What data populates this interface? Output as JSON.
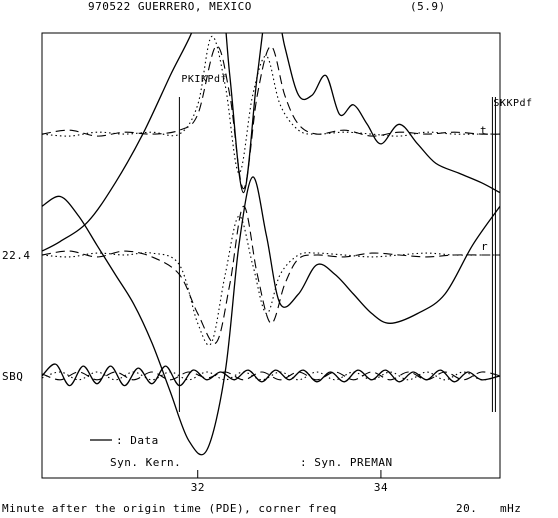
{
  "chart_data": {
    "type": "line",
    "title": "970522 GUERRERO, MEXICO",
    "magnitude": "(5.9)",
    "xlabel": "Minute after the origin time (PDE), corner freq",
    "corner_freq": "20.",
    "corner_freq_unit": "mHz",
    "xlim": [
      30.3,
      35.3
    ],
    "x_ticks": [
      {
        "value": 32,
        "label": "32"
      },
      {
        "value": 34,
        "label": "34"
      }
    ],
    "phase_markers": [
      {
        "label": "PKIKPdf",
        "x": 31.8
      },
      {
        "label": "SKKPdf",
        "x": 35.25
      }
    ],
    "trace_labels": {
      "distance": "22.4",
      "station": "SBQ",
      "transverse": "t",
      "radial": "r"
    },
    "legend": [
      {
        "label": ": Data",
        "style": "solid"
      },
      {
        "label": "Syn. Kern.",
        "style": "dotted"
      },
      {
        "label": ": Syn. PREMAN",
        "style": "dashed"
      }
    ],
    "traces": [
      {
        "name": "t",
        "baseline": 0.62,
        "series": [
          {
            "style": "solid",
            "points": [
              [
                30.3,
                -0.6
              ],
              [
                30.5,
                -0.55
              ],
              [
                30.8,
                -0.45
              ],
              [
                31.1,
                -0.25
              ],
              [
                31.4,
                0.0
              ],
              [
                31.7,
                0.3
              ],
              [
                32.0,
                0.6
              ],
              [
                32.2,
                1.0
              ],
              [
                32.35,
                0.3
              ],
              [
                32.5,
                -0.3
              ],
              [
                32.65,
                0.3
              ],
              [
                32.8,
                0.75
              ],
              [
                32.95,
                0.45
              ],
              [
                33.1,
                0.2
              ],
              [
                33.25,
                0.2
              ],
              [
                33.4,
                0.3
              ],
              [
                33.55,
                0.1
              ],
              [
                33.7,
                0.15
              ],
              [
                33.85,
                0.05
              ],
              [
                34.0,
                -0.05
              ],
              [
                34.2,
                0.05
              ],
              [
                34.4,
                -0.05
              ],
              [
                34.6,
                -0.15
              ],
              [
                34.85,
                -0.2
              ],
              [
                35.1,
                -0.25
              ],
              [
                35.3,
                -0.3
              ]
            ]
          },
          {
            "style": "dashed",
            "points": [
              [
                30.3,
                0.0
              ],
              [
                30.6,
                0.02
              ],
              [
                30.9,
                -0.01
              ],
              [
                31.2,
                0.01
              ],
              [
                31.5,
                0.0
              ],
              [
                31.8,
                0.02
              ],
              [
                32.0,
                0.1
              ],
              [
                32.2,
                0.45
              ],
              [
                32.35,
                0.2
              ],
              [
                32.5,
                -0.28
              ],
              [
                32.65,
                0.2
              ],
              [
                32.8,
                0.45
              ],
              [
                32.95,
                0.2
              ],
              [
                33.1,
                0.05
              ],
              [
                33.3,
                0.0
              ],
              [
                33.6,
                0.02
              ],
              [
                33.9,
                -0.01
              ],
              [
                34.2,
                0.01
              ],
              [
                34.5,
                0.0
              ],
              [
                34.8,
                0.01
              ],
              [
                35.1,
                0.0
              ],
              [
                35.3,
                0.0
              ]
            ]
          },
          {
            "style": "dotted",
            "points": [
              [
                30.3,
                0.0
              ],
              [
                30.6,
                -0.01
              ],
              [
                30.9,
                0.01
              ],
              [
                31.2,
                0.0
              ],
              [
                31.5,
                0.01
              ],
              [
                31.8,
                0.0
              ],
              [
                32.0,
                0.15
              ],
              [
                32.15,
                0.5
              ],
              [
                32.3,
                0.25
              ],
              [
                32.45,
                -0.2
              ],
              [
                32.6,
                0.2
              ],
              [
                32.75,
                0.4
              ],
              [
                32.9,
                0.15
              ],
              [
                33.1,
                0.02
              ],
              [
                33.3,
                0.0
              ],
              [
                33.6,
                0.01
              ],
              [
                33.9,
                0.0
              ],
              [
                34.2,
                -0.01
              ],
              [
                34.5,
                0.01
              ],
              [
                34.8,
                0.0
              ],
              [
                35.1,
                0.0
              ],
              [
                35.3,
                0.0
              ]
            ]
          }
        ]
      },
      {
        "name": "r",
        "baseline": 0.0,
        "series": [
          {
            "style": "solid",
            "points": [
              [
                30.3,
                0.25
              ],
              [
                30.5,
                0.3
              ],
              [
                30.7,
                0.2
              ],
              [
                30.9,
                0.05
              ],
              [
                31.1,
                -0.1
              ],
              [
                31.3,
                -0.25
              ],
              [
                31.5,
                -0.45
              ],
              [
                31.7,
                -0.7
              ],
              [
                31.9,
                -0.95
              ],
              [
                32.1,
                -1.0
              ],
              [
                32.3,
                -0.6
              ],
              [
                32.45,
                0.05
              ],
              [
                32.6,
                0.4
              ],
              [
                32.75,
                0.1
              ],
              [
                32.9,
                -0.25
              ],
              [
                33.1,
                -0.2
              ],
              [
                33.3,
                -0.05
              ],
              [
                33.5,
                -0.1
              ],
              [
                33.7,
                -0.2
              ],
              [
                33.9,
                -0.3
              ],
              [
                34.1,
                -0.35
              ],
              [
                34.4,
                -0.3
              ],
              [
                34.7,
                -0.2
              ],
              [
                35.0,
                0.05
              ],
              [
                35.3,
                0.25
              ]
            ]
          },
          {
            "style": "dashed",
            "points": [
              [
                30.3,
                0.0
              ],
              [
                30.6,
                0.02
              ],
              [
                30.9,
                -0.01
              ],
              [
                31.2,
                0.02
              ],
              [
                31.5,
                -0.01
              ],
              [
                31.8,
                -0.1
              ],
              [
                32.0,
                -0.3
              ],
              [
                32.2,
                -0.45
              ],
              [
                32.35,
                -0.15
              ],
              [
                32.5,
                0.25
              ],
              [
                32.65,
                -0.1
              ],
              [
                32.8,
                -0.35
              ],
              [
                32.95,
                -0.15
              ],
              [
                33.1,
                -0.02
              ],
              [
                33.3,
                0.0
              ],
              [
                33.6,
                -0.01
              ],
              [
                33.9,
                0.01
              ],
              [
                34.2,
                0.0
              ],
              [
                34.5,
                -0.01
              ],
              [
                34.8,
                0.0
              ],
              [
                35.1,
                0.0
              ],
              [
                35.3,
                0.0
              ]
            ]
          },
          {
            "style": "dotted",
            "points": [
              [
                30.3,
                0.0
              ],
              [
                30.6,
                -0.01
              ],
              [
                30.9,
                0.01
              ],
              [
                31.2,
                0.0
              ],
              [
                31.5,
                0.01
              ],
              [
                31.8,
                -0.05
              ],
              [
                32.0,
                -0.35
              ],
              [
                32.15,
                -0.45
              ],
              [
                32.3,
                -0.1
              ],
              [
                32.45,
                0.2
              ],
              [
                32.6,
                -0.05
              ],
              [
                32.75,
                -0.3
              ],
              [
                32.9,
                -0.1
              ],
              [
                33.1,
                0.0
              ],
              [
                33.3,
                0.01
              ],
              [
                33.6,
                0.0
              ],
              [
                33.9,
                -0.01
              ],
              [
                34.2,
                0.0
              ],
              [
                34.5,
                0.01
              ],
              [
                34.8,
                0.0
              ],
              [
                35.1,
                0.0
              ],
              [
                35.3,
                0.0
              ]
            ]
          }
        ]
      },
      {
        "name": "SBQ",
        "baseline": -0.62,
        "series": [
          {
            "style": "solid",
            "points": [
              [
                30.3,
                0.0
              ],
              [
                30.45,
                0.06
              ],
              [
                30.6,
                -0.05
              ],
              [
                30.75,
                0.05
              ],
              [
                30.9,
                -0.04
              ],
              [
                31.05,
                0.05
              ],
              [
                31.2,
                -0.05
              ],
              [
                31.35,
                0.04
              ],
              [
                31.5,
                -0.04
              ],
              [
                31.65,
                0.05
              ],
              [
                31.8,
                -0.05
              ],
              [
                31.95,
                0.03
              ],
              [
                32.1,
                -0.02
              ],
              [
                32.25,
                0.02
              ],
              [
                32.4,
                -0.02
              ],
              [
                32.55,
                0.03
              ],
              [
                32.7,
                -0.03
              ],
              [
                32.85,
                0.03
              ],
              [
                33.0,
                -0.02
              ],
              [
                33.15,
                0.03
              ],
              [
                33.3,
                -0.03
              ],
              [
                33.45,
                0.02
              ],
              [
                33.6,
                -0.03
              ],
              [
                33.75,
                0.03
              ],
              [
                33.9,
                -0.02
              ],
              [
                34.05,
                0.03
              ],
              [
                34.2,
                -0.03
              ],
              [
                34.35,
                0.02
              ],
              [
                34.5,
                -0.02
              ],
              [
                34.65,
                0.03
              ],
              [
                34.8,
                -0.03
              ],
              [
                34.95,
                0.02
              ],
              [
                35.1,
                -0.02
              ],
              [
                35.3,
                0.0
              ]
            ]
          },
          {
            "style": "dashed",
            "points": [
              [
                30.3,
                0.01
              ],
              [
                30.5,
                -0.02
              ],
              [
                30.7,
                0.02
              ],
              [
                30.9,
                -0.02
              ],
              [
                31.1,
                0.02
              ],
              [
                31.3,
                -0.02
              ],
              [
                31.5,
                0.02
              ],
              [
                31.7,
                -0.02
              ],
              [
                31.9,
                0.02
              ],
              [
                32.1,
                -0.01
              ],
              [
                32.3,
                0.02
              ],
              [
                32.5,
                -0.02
              ],
              [
                32.7,
                0.02
              ],
              [
                32.9,
                -0.02
              ],
              [
                33.1,
                0.02
              ],
              [
                33.3,
                -0.02
              ],
              [
                33.5,
                0.02
              ],
              [
                33.7,
                -0.02
              ],
              [
                33.9,
                0.02
              ],
              [
                34.1,
                -0.02
              ],
              [
                34.3,
                0.02
              ],
              [
                34.5,
                -0.02
              ],
              [
                34.7,
                0.02
              ],
              [
                34.9,
                -0.02
              ],
              [
                35.1,
                0.02
              ],
              [
                35.3,
                0.0
              ]
            ]
          },
          {
            "style": "dotted",
            "points": [
              [
                30.3,
                -0.01
              ],
              [
                30.5,
                0.02
              ],
              [
                30.7,
                -0.02
              ],
              [
                30.9,
                0.02
              ],
              [
                31.1,
                -0.02
              ],
              [
                31.3,
                0.02
              ],
              [
                31.5,
                -0.02
              ],
              [
                31.7,
                0.02
              ],
              [
                31.9,
                -0.02
              ],
              [
                32.1,
                0.02
              ],
              [
                32.3,
                -0.02
              ],
              [
                32.5,
                0.02
              ],
              [
                32.7,
                -0.02
              ],
              [
                32.9,
                0.02
              ],
              [
                33.1,
                -0.02
              ],
              [
                33.3,
                0.02
              ],
              [
                33.5,
                -0.02
              ],
              [
                33.7,
                0.02
              ],
              [
                33.9,
                -0.02
              ],
              [
                34.1,
                0.02
              ],
              [
                34.3,
                -0.02
              ],
              [
                34.5,
                0.02
              ],
              [
                34.7,
                -0.02
              ],
              [
                34.9,
                0.02
              ],
              [
                35.1,
                -0.02
              ],
              [
                35.3,
                0.0
              ]
            ]
          }
        ]
      }
    ]
  }
}
